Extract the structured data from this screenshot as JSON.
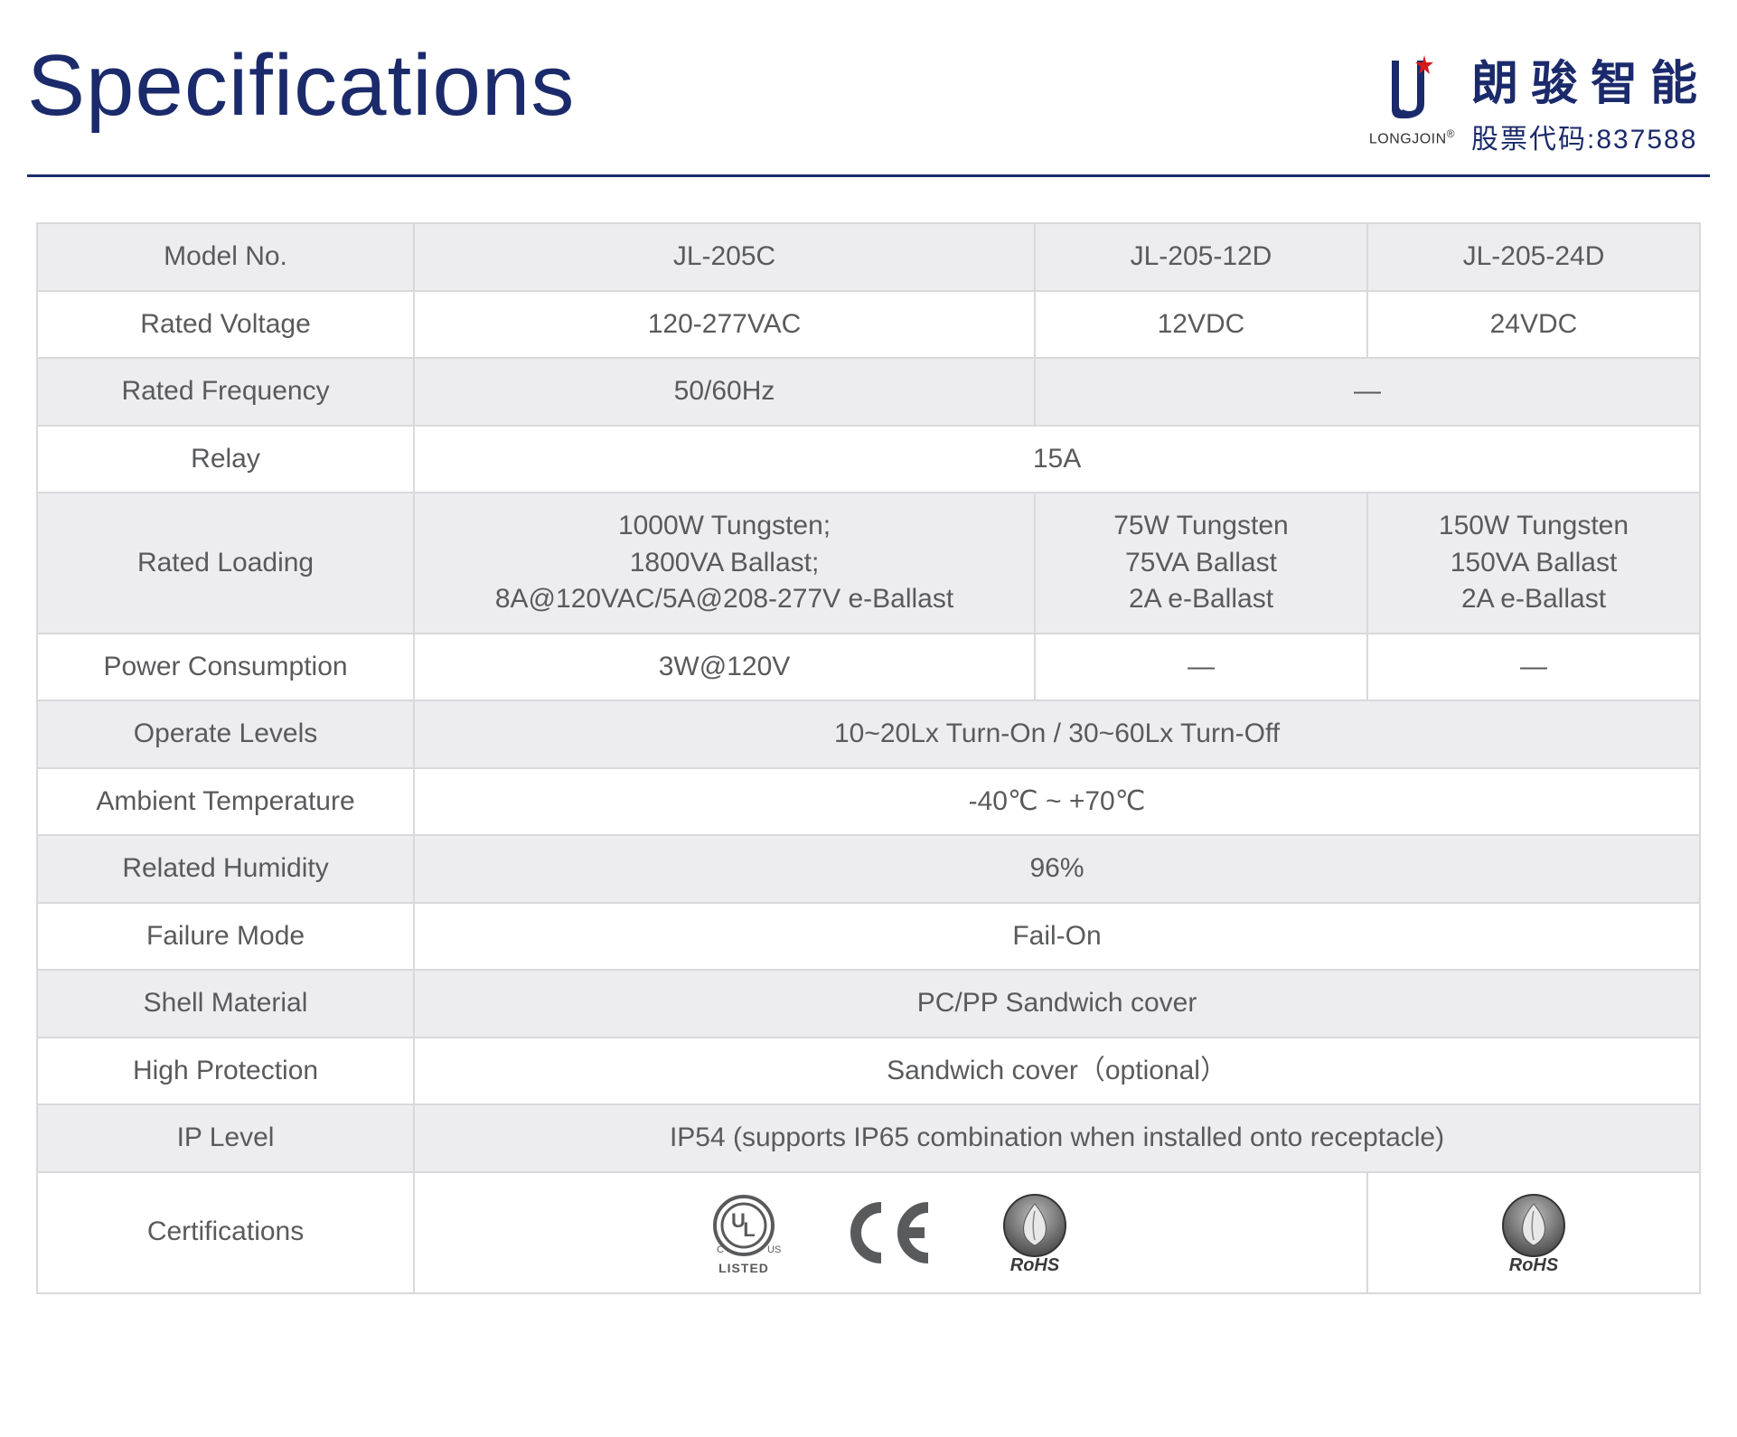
{
  "colors": {
    "brand_navy": "#1b2a6b",
    "rule": "#1b2a6b",
    "text": "#595a5c",
    "border": "#d9d9dc",
    "row_shade": "#ededef",
    "row_plain": "#ffffff",
    "logo_star": "#d31a1a",
    "icon_gray": "#6b6b6b"
  },
  "header": {
    "title": "Specifications",
    "logo": {
      "company_en": "LONGJOIN",
      "reg_mark": "®",
      "company_cn": "朗骏智能",
      "stock_code": "股票代码:837588"
    }
  },
  "table": {
    "columns_layout": [
      "label",
      "main",
      "d1",
      "d2"
    ],
    "rows": [
      {
        "shade": true,
        "label": "Model No.",
        "cells": [
          {
            "text": "JL-205C"
          },
          {
            "text": "JL-205-12D"
          },
          {
            "text": "JL-205-24D"
          }
        ]
      },
      {
        "shade": false,
        "label": "Rated Voltage",
        "cells": [
          {
            "text": "120-277VAC"
          },
          {
            "text": "12VDC"
          },
          {
            "text": "24VDC"
          }
        ]
      },
      {
        "shade": true,
        "label": "Rated Frequency",
        "cells": [
          {
            "text": "50/60Hz"
          },
          {
            "text": "—",
            "span": 2,
            "dash": true
          }
        ]
      },
      {
        "shade": false,
        "label": "Relay",
        "cells": [
          {
            "text": "15A",
            "span": 3
          }
        ]
      },
      {
        "shade": true,
        "label": "Rated Loading",
        "cells": [
          {
            "text": "1000W Tungsten;\n1800VA Ballast;\n8A@120VAC/5A@208-277V  e-Ballast"
          },
          {
            "text": "75W Tungsten\n75VA Ballast\n2A e-Ballast"
          },
          {
            "text": "150W Tungsten\n150VA Ballast\n2A e-Ballast"
          }
        ]
      },
      {
        "shade": false,
        "label": "Power Consumption",
        "cells": [
          {
            "text": "3W@120V"
          },
          {
            "text": "—",
            "dash": true
          },
          {
            "text": "—",
            "dash": true
          }
        ]
      },
      {
        "shade": true,
        "label": "Operate Levels",
        "cells": [
          {
            "text": "10~20Lx  Turn-On  /  30~60Lx  Turn-Off",
            "span": 3
          }
        ]
      },
      {
        "shade": false,
        "label": "Ambient Temperature",
        "cells": [
          {
            "text": "-40℃ ~ +70℃",
            "span": 3
          }
        ]
      },
      {
        "shade": true,
        "label": "Related Humidity",
        "cells": [
          {
            "text": "96%",
            "span": 3
          }
        ]
      },
      {
        "shade": false,
        "label": "Failure Mode",
        "cells": [
          {
            "text": "Fail-On",
            "span": 3
          }
        ]
      },
      {
        "shade": true,
        "label": "Shell Material",
        "cells": [
          {
            "text": "PC/PP Sandwich cover",
            "span": 3
          }
        ]
      },
      {
        "shade": false,
        "label": "High Protection",
        "cells": [
          {
            "text": "Sandwich cover（optional）",
            "span": 3
          }
        ]
      },
      {
        "shade": true,
        "label": "IP Level",
        "cells": [
          {
            "text": "IP54 (supports IP65 combination when installed onto receptacle)",
            "span": 3
          }
        ]
      },
      {
        "shade": false,
        "label": "Certifications",
        "cert": true,
        "cells": [
          {
            "span": 2,
            "icons": [
              "ul-listed",
              "ce",
              "rohs"
            ]
          },
          {
            "span": 1,
            "icons": [
              "rohs"
            ]
          }
        ]
      }
    ],
    "cert_icons": {
      "ul-listed": {
        "name": "ul-listed-icon",
        "caption": "LISTED"
      },
      "ce": {
        "name": "ce-mark-icon"
      },
      "rohs": {
        "name": "rohs-icon",
        "caption": "RoHS"
      }
    }
  }
}
